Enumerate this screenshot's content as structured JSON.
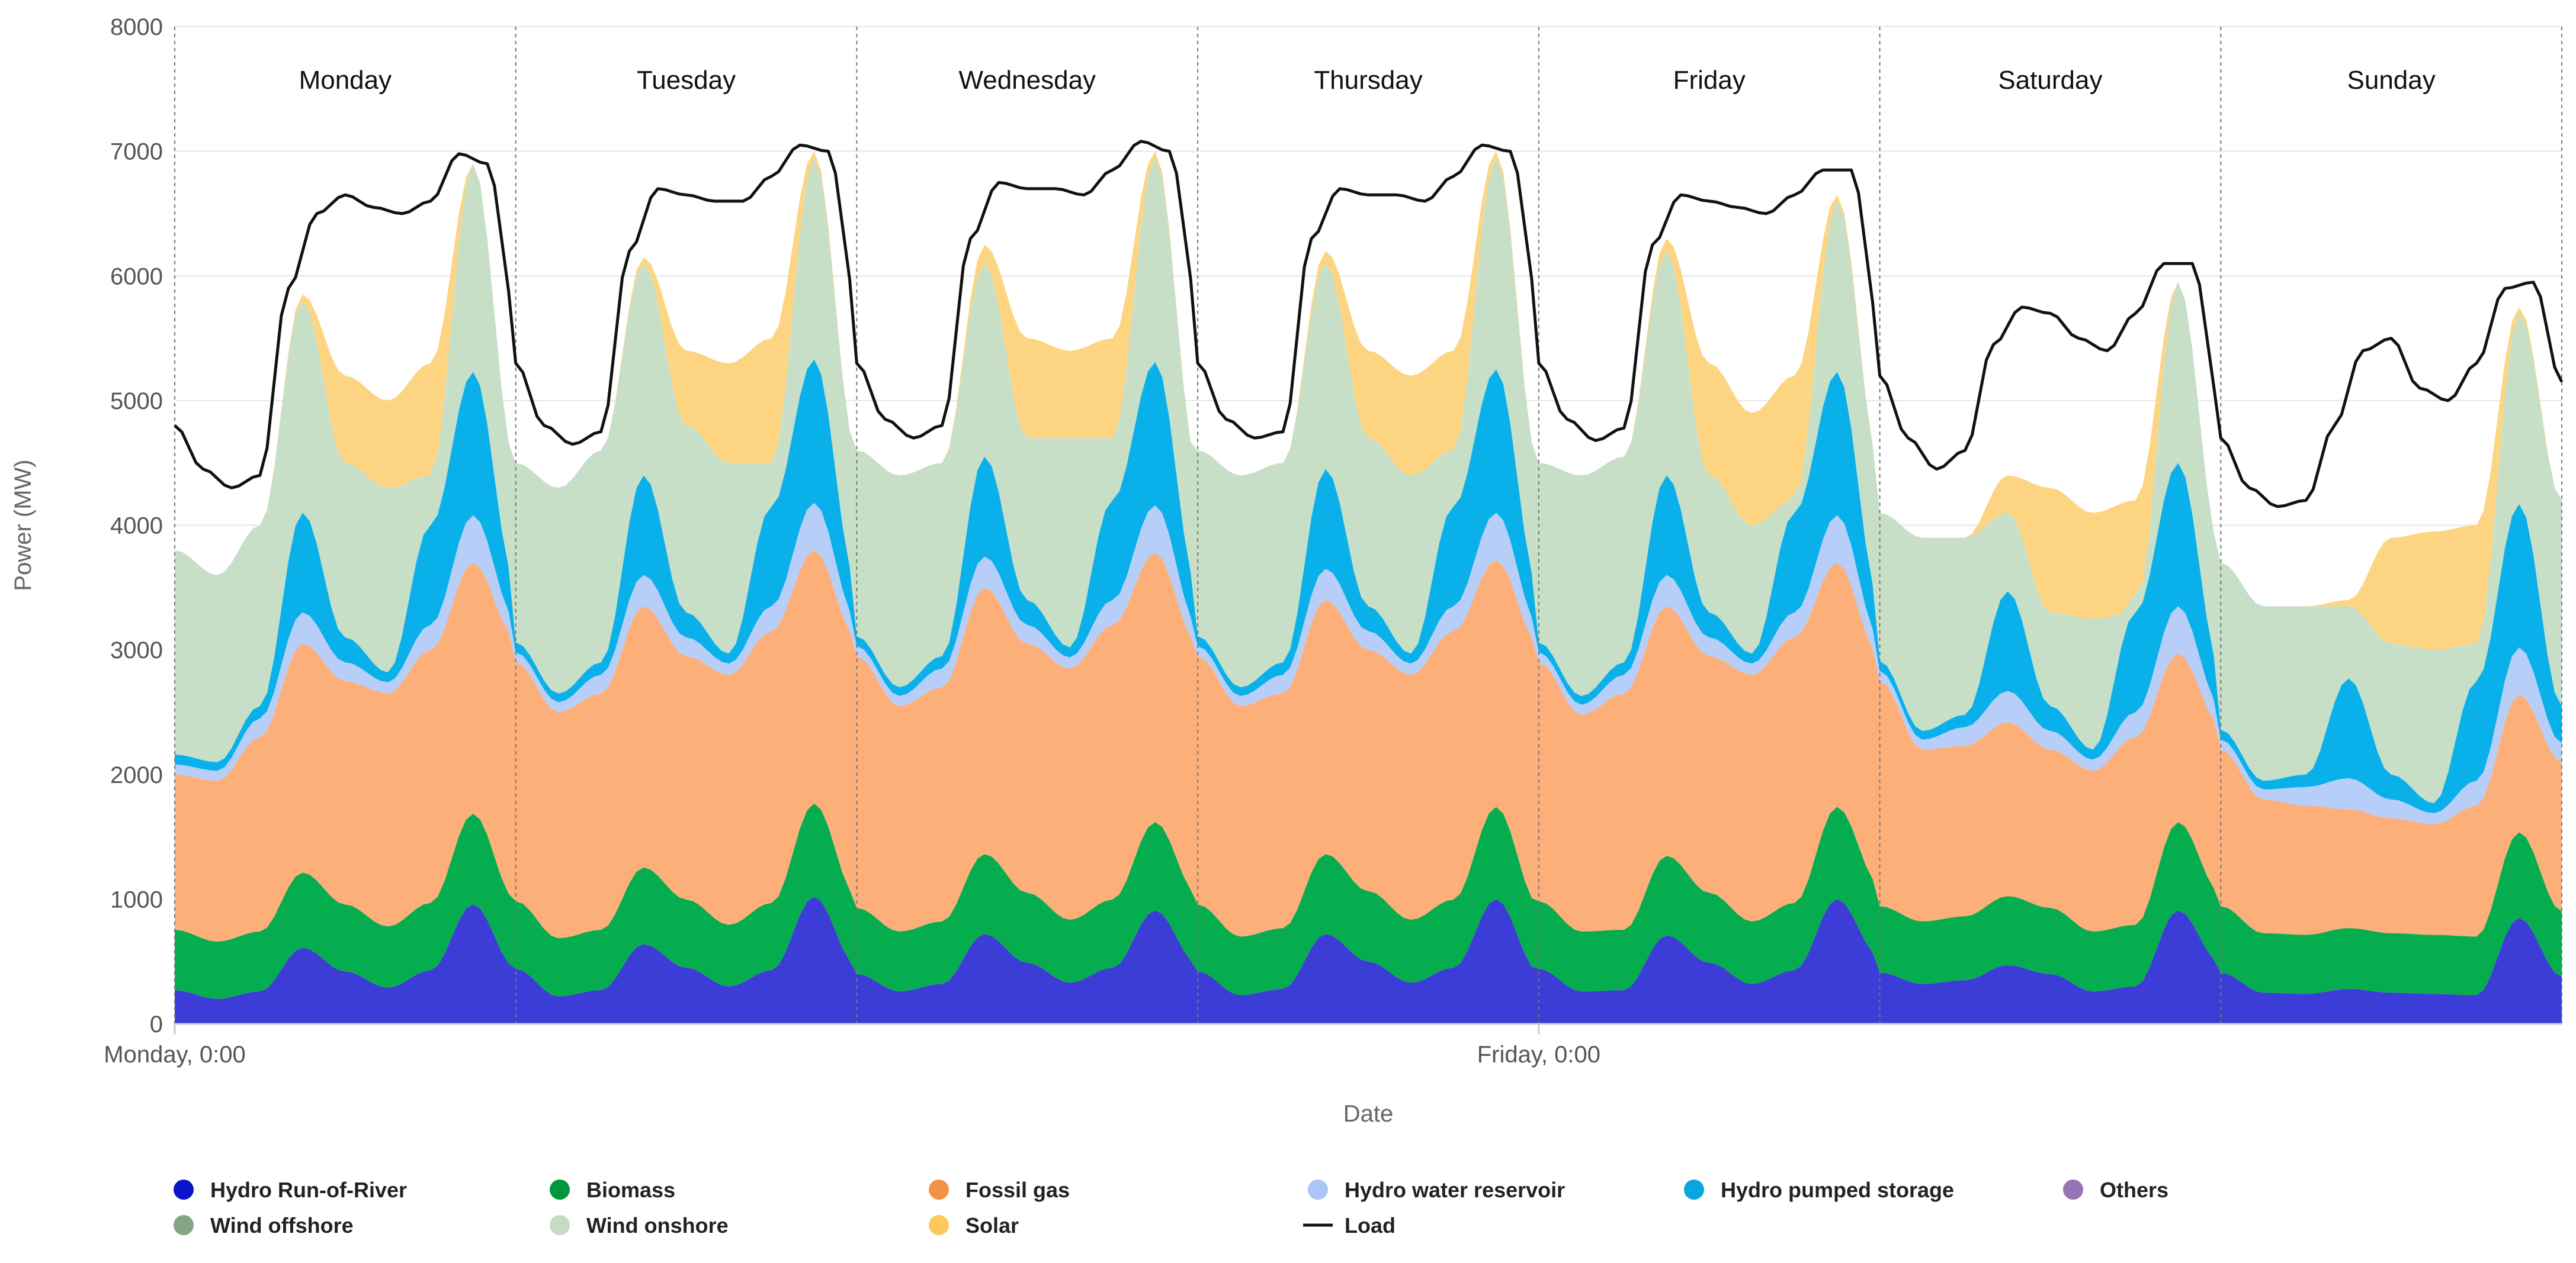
{
  "chart_data": {
    "type": "area",
    "stacked": true,
    "xlabel": "Date",
    "ylabel": "Power (MW)",
    "ylim": [
      0,
      8000
    ],
    "yticks": [
      0,
      1000,
      2000,
      3000,
      4000,
      5000,
      6000,
      7000,
      8000
    ],
    "xticks": [
      {
        "label": "Monday, 0:00",
        "hour": 0
      },
      {
        "label": "Friday, 0:00",
        "hour": 96
      }
    ],
    "x_range_hours": [
      0,
      168
    ],
    "x_unit": "hour of week",
    "days": [
      "Monday",
      "Tuesday",
      "Wednesday",
      "Thursday",
      "Friday",
      "Saturday",
      "Sunday"
    ],
    "grid": true,
    "legend_position": "bottom",
    "series_order": [
      "Hydro Run-of-River",
      "Biomass",
      "Fossil gas",
      "Hydro water reservoir",
      "Hydro pumped storage",
      "Others",
      "Wind offshore",
      "Wind onshore",
      "Solar",
      "Load"
    ],
    "series": [
      {
        "name": "Hydro Run-of-River",
        "color": "#3c3cd7",
        "legend_color": "#0a14c8",
        "hours": [
          0,
          3,
          6,
          9,
          12,
          15,
          18,
          21,
          24
        ],
        "days": [
          [
            270,
            200,
            260,
            610,
            420,
            290,
            430,
            960,
            450
          ],
          [
            440,
            220,
            270,
            640,
            450,
            300,
            430,
            1020,
            470
          ],
          [
            400,
            260,
            320,
            720,
            490,
            330,
            450,
            910,
            480
          ],
          [
            420,
            230,
            280,
            720,
            500,
            330,
            450,
            1000,
            420
          ],
          [
            440,
            260,
            270,
            710,
            490,
            320,
            430,
            1000,
            540
          ],
          [
            410,
            320,
            350,
            470,
            400,
            260,
            300,
            910,
            490
          ],
          [
            410,
            250,
            240,
            280,
            250,
            240,
            230,
            850,
            380
          ]
        ]
      },
      {
        "name": "Biomass",
        "values_constant": 390,
        "color": "#06ad4e",
        "legend_color": "#009640",
        "peak_bonus": [
          0,
          0,
          0,
          0,
          0,
          0,
          0,
          0
        ]
      },
      {
        "name": "Fossil gas",
        "color": "#fdaf7a",
        "legend_color": "#f39146",
        "hours": [
          0,
          3,
          6,
          9,
          12,
          15,
          18,
          21,
          24
        ],
        "totals_by_day": [
          [
            2000,
            1950,
            2300,
            3050,
            2750,
            2650,
            3000,
            3700,
            3100
          ],
          [
            2900,
            2500,
            2650,
            3350,
            2950,
            2800,
            3150,
            3800,
            3100
          ],
          [
            2950,
            2550,
            2700,
            3500,
            3050,
            2850,
            3200,
            3780,
            3050
          ],
          [
            2950,
            2550,
            2650,
            3400,
            3000,
            2800,
            3150,
            3720,
            3050
          ],
          [
            2900,
            2480,
            2650,
            3350,
            2950,
            2800,
            3100,
            3700,
            2950
          ],
          [
            2750,
            2200,
            2230,
            2420,
            2200,
            2030,
            2300,
            2970,
            2400
          ],
          [
            2200,
            1800,
            1750,
            1720,
            1650,
            1600,
            1750,
            2640,
            2100
          ]
        ]
      },
      {
        "name": "Hydro water reservoir",
        "thickness": [
          80,
          80,
          150,
          250,
          150,
          90,
          200,
          380,
          150
        ],
        "color": "#b7cef8",
        "legend_color": "#a9c6f5"
      },
      {
        "name": "Hydro pumped storage",
        "thickness": [
          80,
          70,
          100,
          800,
          200,
          80,
          800,
          1150,
          300
        ],
        "color": "#0ab0ea",
        "legend_color": "#0aa5e1"
      },
      {
        "name": "Others",
        "thickness": [
          0,
          0,
          0,
          0,
          0,
          0,
          0,
          0,
          0
        ],
        "color": "#9673b4",
        "legend_color": "#9673b4"
      },
      {
        "name": "Wind offshore",
        "thickness": [
          0,
          0,
          0,
          0,
          0,
          0,
          0,
          0,
          0
        ],
        "color": "#88aa88",
        "legend_color": "#82a682"
      },
      {
        "name": "Wind onshore",
        "color": "#c7dfc7",
        "legend_color": "#c3dcc3",
        "hours": [
          0,
          3,
          6,
          9,
          12,
          15,
          18,
          21,
          24
        ],
        "top_by_day": [
          [
            3800,
            3600,
            4000,
            5800,
            4500,
            4300,
            4400,
            6900,
            4500
          ],
          [
            4500,
            4300,
            4600,
            6100,
            4800,
            4500,
            4500,
            6950,
            4600
          ],
          [
            4600,
            4400,
            4500,
            6100,
            4700,
            4700,
            4700,
            6950,
            4500
          ],
          [
            4600,
            4400,
            4500,
            6100,
            4700,
            4400,
            4600,
            6950,
            4500
          ],
          [
            4500,
            4400,
            4550,
            6200,
            4400,
            4000,
            4200,
            6600,
            4500
          ],
          [
            4100,
            3900,
            3900,
            4100,
            3300,
            3250,
            3300,
            5950,
            3800
          ],
          [
            3700,
            3350,
            3350,
            3350,
            3050,
            3000,
            3050,
            5700,
            4200
          ]
        ]
      },
      {
        "name": "Solar",
        "color": "#fdd582",
        "legend_color": "#fdc95c",
        "hours": [
          0,
          3,
          6,
          9,
          12,
          15,
          18,
          21,
          24
        ],
        "top_by_day": [
          [
            3800,
            3600,
            4000,
            5850,
            5200,
            5000,
            5300,
            6900,
            4500
          ],
          [
            4500,
            4300,
            4600,
            6150,
            5400,
            5300,
            5500,
            7000,
            4600
          ],
          [
            4600,
            4400,
            4500,
            6250,
            5500,
            5400,
            5500,
            7000,
            4500
          ],
          [
            4600,
            4400,
            4500,
            6200,
            5400,
            5200,
            5400,
            7000,
            4500
          ],
          [
            4500,
            4400,
            4550,
            6300,
            5300,
            4900,
            5200,
            6650,
            4500
          ],
          [
            4100,
            3900,
            3900,
            4400,
            4300,
            4100,
            4200,
            5950,
            3800
          ],
          [
            3700,
            3350,
            3350,
            3400,
            3900,
            3950,
            4000,
            5750,
            4200
          ]
        ]
      },
      {
        "name": "Load",
        "color": "#111111",
        "legend_color": "#111111",
        "line": true,
        "hours": [
          0,
          2,
          4,
          6,
          8,
          10,
          12,
          14,
          16,
          18,
          20,
          22,
          24
        ],
        "values_by_day": [
          [
            4800,
            4450,
            4300,
            4400,
            5900,
            6500,
            6650,
            6550,
            6500,
            6600,
            6980,
            6900,
            5700
          ],
          [
            5300,
            4800,
            4650,
            4750,
            6200,
            6700,
            6650,
            6600,
            6600,
            6800,
            7050,
            7000,
            5800
          ],
          [
            5300,
            4850,
            4700,
            4800,
            6300,
            6750,
            6700,
            6700,
            6650,
            6850,
            7080,
            7000,
            5800
          ],
          [
            5300,
            4850,
            4700,
            4750,
            6300,
            6700,
            6650,
            6650,
            6600,
            6800,
            7050,
            7000,
            5800
          ],
          [
            5300,
            4850,
            4680,
            4780,
            6250,
            6650,
            6600,
            6550,
            6500,
            6650,
            6850,
            6850,
            5600
          ],
          [
            5200,
            4700,
            4450,
            4600,
            5450,
            5750,
            5700,
            5500,
            5400,
            5700,
            6100,
            6100,
            4950
          ],
          [
            4700,
            4300,
            4150,
            4200,
            4800,
            5400,
            5500,
            5100,
            5000,
            5300,
            5900,
            5950,
            5150
          ]
        ]
      }
    ]
  },
  "legend": {
    "items": [
      {
        "label": "Hydro Run-of-River"
      },
      {
        "label": "Biomass"
      },
      {
        "label": "Fossil gas"
      },
      {
        "label": "Hydro water reservoir"
      },
      {
        "label": "Hydro pumped storage"
      },
      {
        "label": "Others"
      },
      {
        "label": "Wind offshore"
      },
      {
        "label": "Wind onshore"
      },
      {
        "label": "Solar"
      },
      {
        "label": "Load"
      }
    ]
  }
}
